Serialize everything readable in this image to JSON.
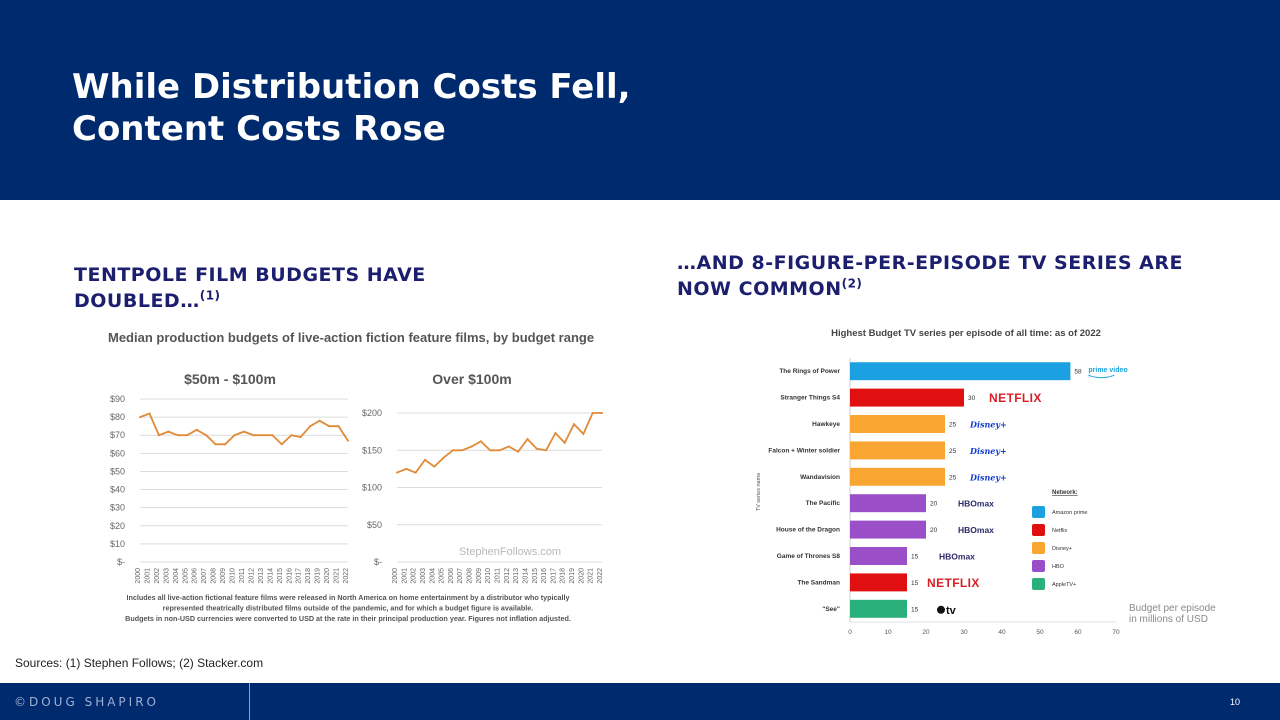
{
  "slide": {
    "title_line1": "While Distribution Costs Fell,",
    "title_line2": "Content Costs Rose"
  },
  "left_section": {
    "heading": "TENTPOLE FILM BUDGETS HAVE DOUBLED…",
    "footnote_marker": "(1)"
  },
  "right_section": {
    "heading": "…AND 8-FIGURE-PER-EPISODE TV SERIES ARE NOW COMMON",
    "footnote_marker": "(2)",
    "budget_note": "Budget per episode in millions of USD"
  },
  "sources": "Sources: (1) Stephen Follows; (2) Stacker.com",
  "footer": {
    "copyright": "©DOUG SHAPIRO",
    "page_number": "10"
  },
  "chart_data": [
    {
      "type": "line",
      "title": "Median production budgets of live-action fiction feature films, by budget range",
      "subtitle": "$50m - $100m",
      "x": [
        "2000",
        "2001",
        "2002",
        "2003",
        "2004",
        "2005",
        "2006",
        "2007",
        "2008",
        "2009",
        "2010",
        "2011",
        "2012",
        "2013",
        "2014",
        "2015",
        "2016",
        "2017",
        "2018",
        "2019",
        "2020",
        "2021",
        "2022"
      ],
      "values": [
        80,
        82,
        70,
        72,
        70,
        70,
        73,
        70,
        65,
        65,
        70,
        72,
        70,
        70,
        70,
        65,
        70,
        69,
        75,
        78,
        75,
        75,
        67
      ],
      "ylim": [
        0,
        90
      ],
      "yticks": [
        "$-",
        "$10",
        "$20",
        "$30",
        "$40",
        "$50",
        "$60",
        "$70",
        "$80",
        "$90"
      ],
      "line_color": "#e08b3a",
      "grid": true
    },
    {
      "type": "line",
      "subtitle": "Over $100m",
      "watermark": "StephenFollows.com",
      "x": [
        "2000",
        "2001",
        "2002",
        "2003",
        "2004",
        "2005",
        "2006",
        "2007",
        "2008",
        "2009",
        "2010",
        "2011",
        "2012",
        "2013",
        "2014",
        "2015",
        "2016",
        "2017",
        "2018",
        "2019",
        "2020",
        "2021",
        "2022"
      ],
      "values": [
        120,
        125,
        120,
        137,
        128,
        140,
        150,
        150,
        155,
        162,
        150,
        150,
        155,
        148,
        165,
        152,
        150,
        173,
        160,
        185,
        172,
        200,
        200
      ],
      "ylim": [
        0,
        200
      ],
      "yticks": [
        "$-",
        "$50",
        "$100",
        "$150",
        "$200"
      ],
      "line_color": "#e08b3a",
      "grid": true,
      "caption_lines": [
        "Includes all live-action fictional feature films were released in North America on home entertainment by a distributor who typically",
        "represented theatrically distributed films outside of the pandemic, and for which a budget figure is available.",
        "Budgets in non-USD currencies were converted to USD at the rate in their principal production year. Figures not inflation adjusted."
      ]
    },
    {
      "type": "bar",
      "orientation": "horizontal",
      "title": "Highest Budget TV series per episode of all time: as of 2022",
      "ylabel": "TV series name",
      "categories": [
        "The Rings of Power",
        "Stranger Things S4",
        "Hawkeye",
        "Falcon + Winter soldier",
        "Wandavision",
        "The Pacific",
        "House of the Dragon",
        "Game of Thrones S8",
        "The Sandman",
        "\"See\""
      ],
      "values": [
        58,
        30,
        25,
        25,
        25,
        20,
        20,
        15,
        15,
        15
      ],
      "networks": [
        "Amazon prime",
        "Netflix",
        "Disney+",
        "Disney+",
        "Disney+",
        "HBO",
        "HBO",
        "HBO",
        "Netflix",
        "AppleTV+"
      ],
      "logos": [
        "prime video",
        "NETFLIX",
        "Disney+",
        "Disney+",
        "Disney+",
        "HBOmax",
        "HBOmax",
        "HBOmax",
        "NETFLIX",
        "tv"
      ],
      "xlim": [
        0,
        70
      ],
      "xticks": [
        0,
        10,
        20,
        30,
        40,
        50,
        60,
        70
      ],
      "legend": {
        "title": "Network:",
        "placement": "right",
        "items": [
          {
            "name": "Amazon prime",
            "color": "#1ba1e2"
          },
          {
            "name": "Netflix",
            "color": "#e01010"
          },
          {
            "name": "Disney+",
            "color": "#f8a631"
          },
          {
            "name": "HBO",
            "color": "#9a4fc9"
          },
          {
            "name": "AppleTV+",
            "color": "#2ab07a"
          }
        ]
      }
    }
  ]
}
